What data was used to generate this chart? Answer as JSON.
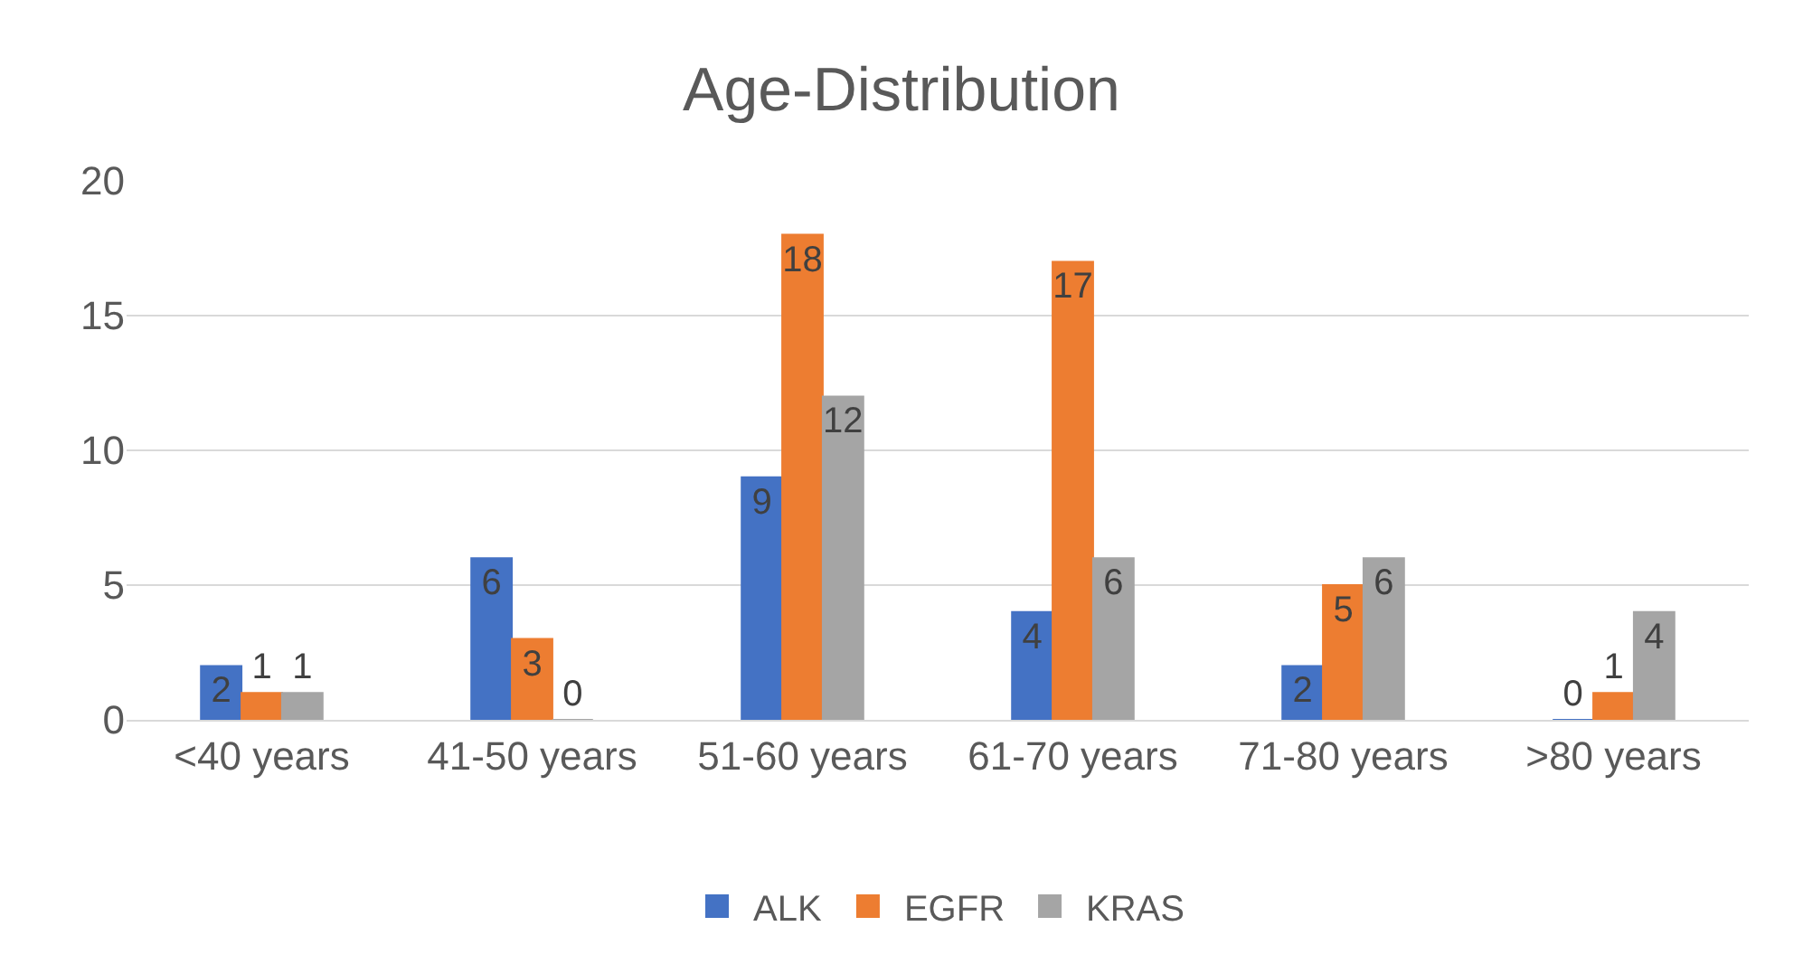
{
  "chart_data": {
    "type": "bar",
    "title": "Age-Distribution",
    "categories": [
      "<40 years",
      "41-50 years",
      "51-60 years",
      "61-70 years",
      "71-80 years",
      ">80 years"
    ],
    "series": [
      {
        "name": "ALK",
        "color": "#4472c4",
        "values": [
          2,
          6,
          9,
          4,
          2,
          0
        ]
      },
      {
        "name": "EGFR",
        "color": "#ed7d31",
        "values": [
          1,
          3,
          18,
          17,
          5,
          1
        ]
      },
      {
        "name": "KRAS",
        "color": "#a5a5a5",
        "values": [
          1,
          0,
          12,
          6,
          6,
          4
        ]
      }
    ],
    "ylim": [
      0,
      20
    ],
    "yticks": [
      0,
      5,
      10,
      15,
      20
    ],
    "grid": "y",
    "legend": "bottom",
    "data_labels": true
  }
}
